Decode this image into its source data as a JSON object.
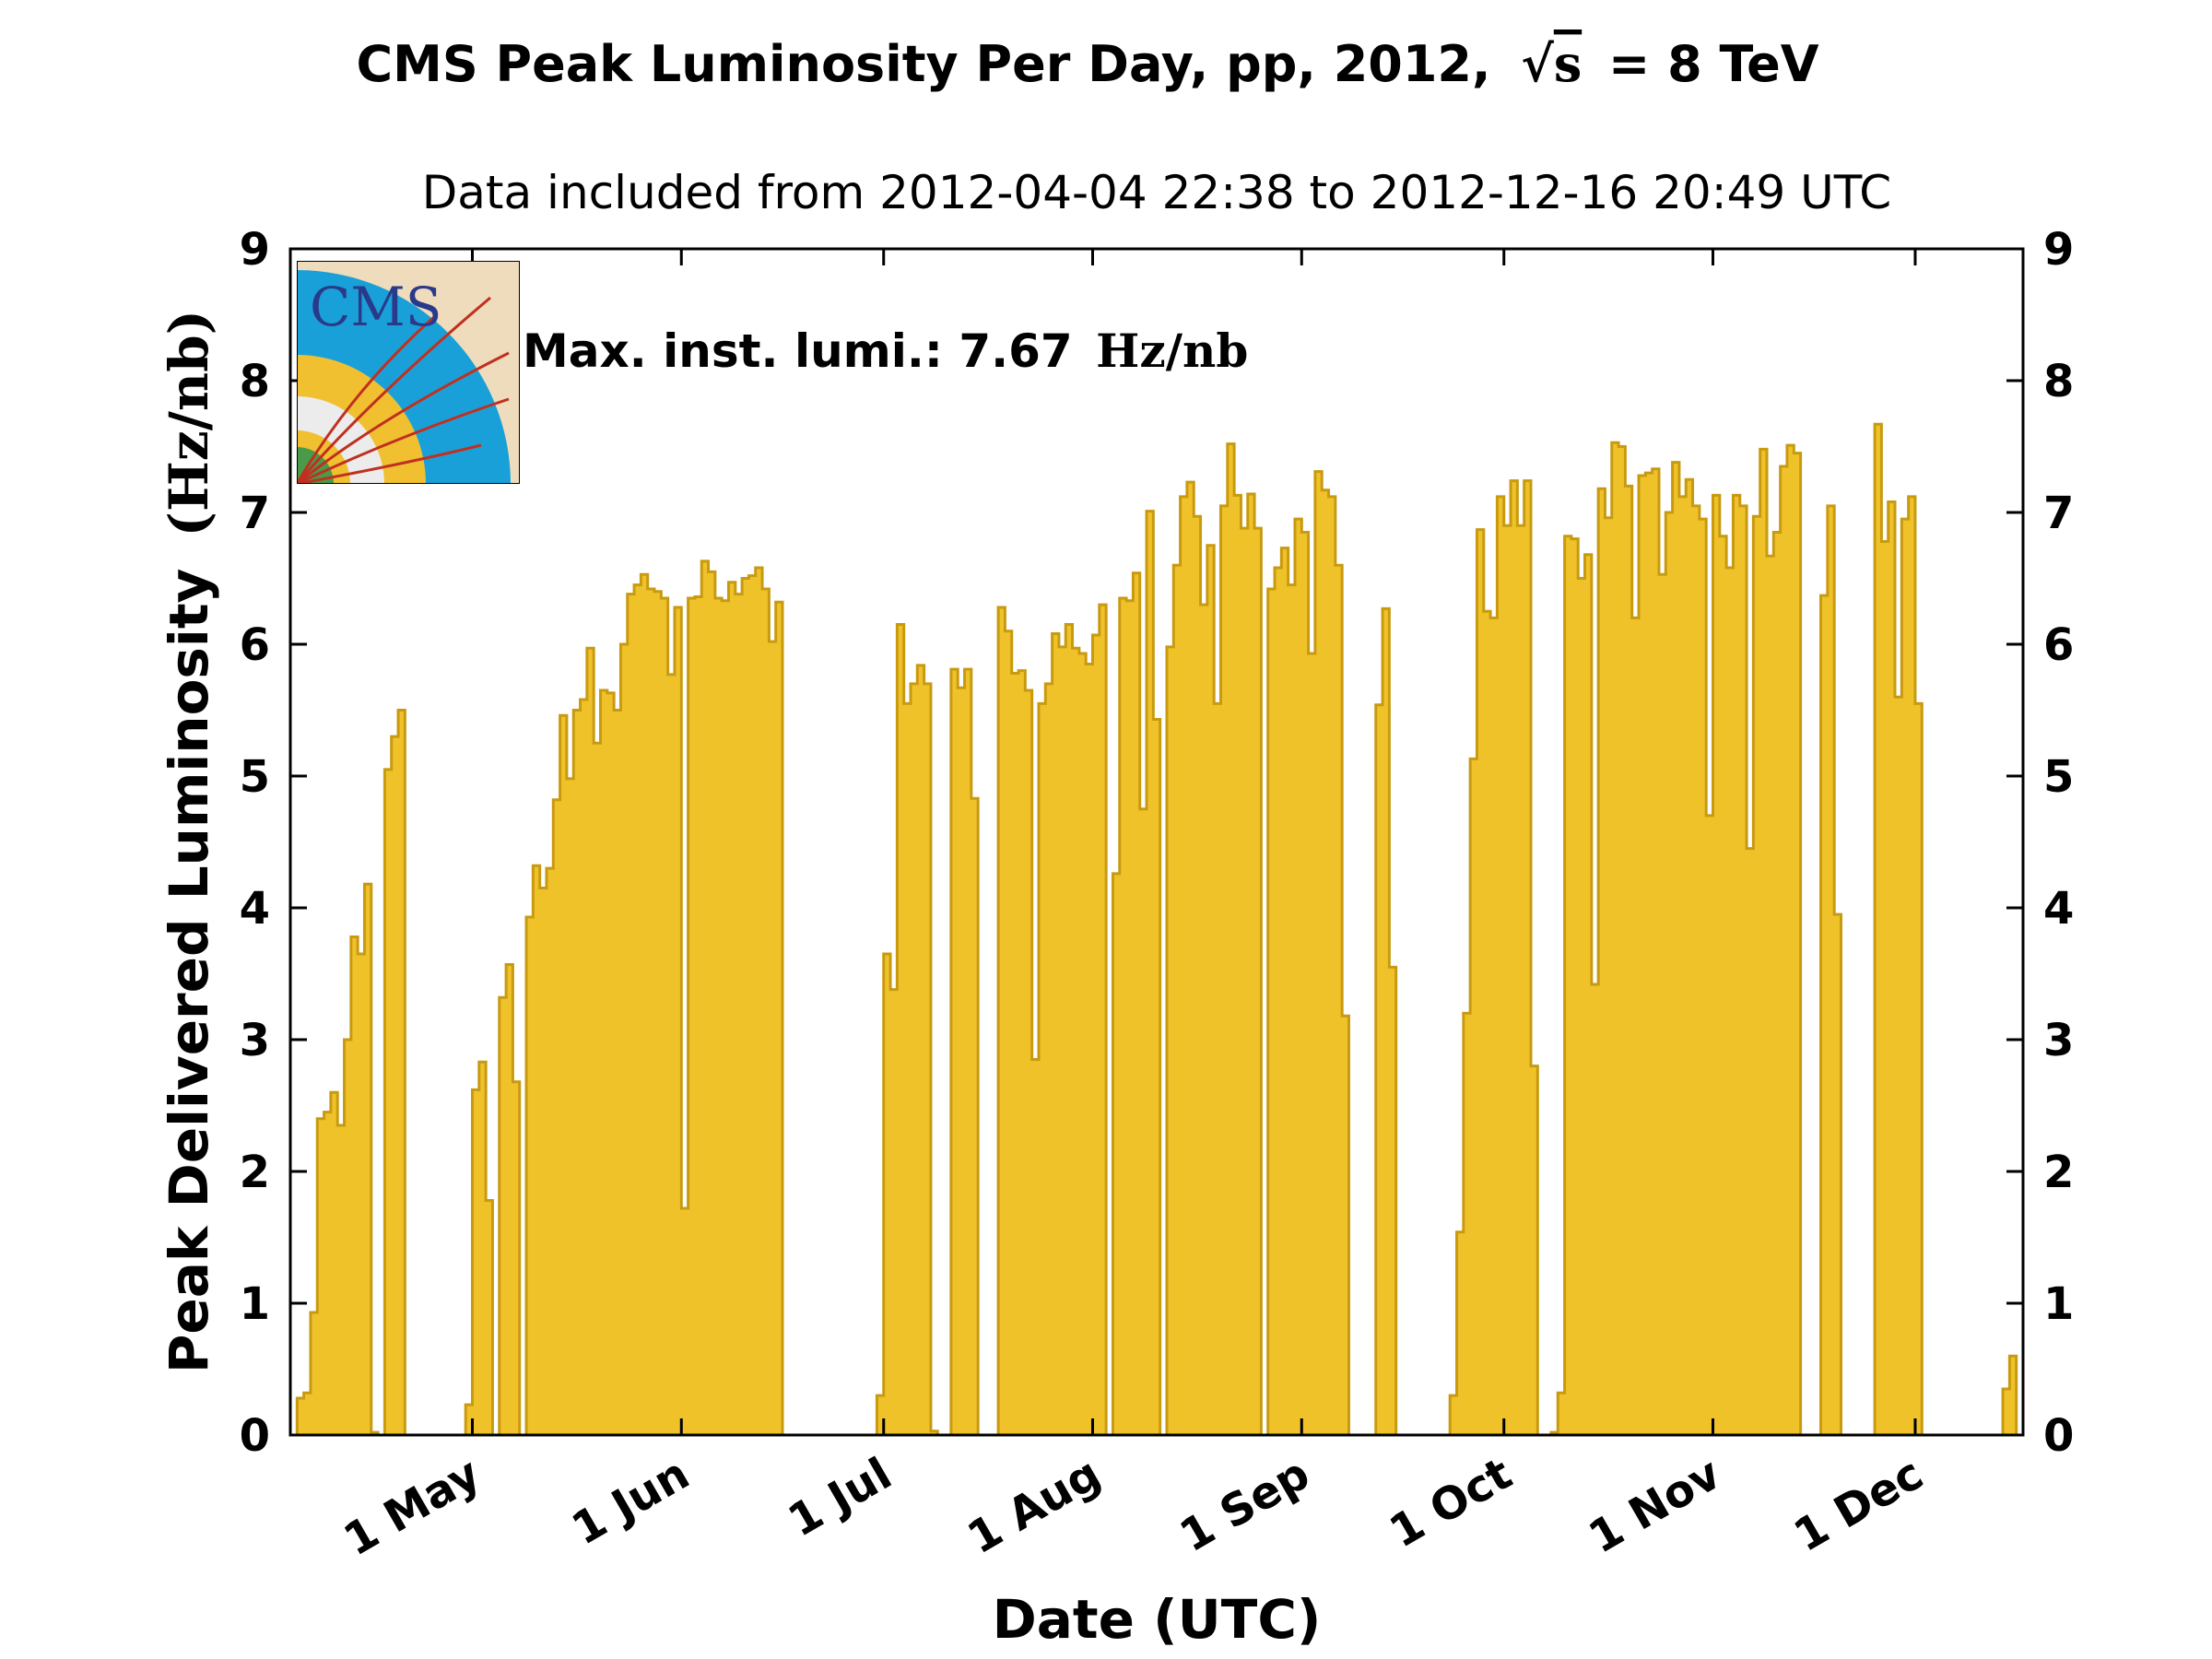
{
  "title": {
    "text": "CMS Peak Luminosity Per Day, pp, 2012,",
    "sqrt_sym": "√",
    "sqrt_arg": "s",
    "energy": "= 8 TeV"
  },
  "subtitle": "Data included from 2012-04-04 22:38 to 2012-12-16 20:49 UTC",
  "annotation": {
    "label": "Max. inst. lumi.: 7.67",
    "unit": "Hz/nb"
  },
  "logo_text": "CMS",
  "colors": {
    "fill": "#f0c22a",
    "stroke": "#c89a10",
    "axis": "#000000"
  },
  "chart_data": {
    "type": "bar",
    "series_style": "step-filled histogram",
    "xlabel": "Date (UTC)",
    "ylabel": "Peak Delivered Luminosity",
    "ylabel_unit": "(Hz/nb)",
    "ylim": [
      0,
      9
    ],
    "xlim": [
      "2012-04-04",
      "2012-12-16"
    ],
    "yticks": [
      0,
      1,
      2,
      3,
      4,
      5,
      6,
      7,
      8,
      9
    ],
    "xticks": [
      {
        "date": "2012-05-01",
        "label": "1 May"
      },
      {
        "date": "2012-06-01",
        "label": "1 Jun"
      },
      {
        "date": "2012-07-01",
        "label": "1 Jul"
      },
      {
        "date": "2012-08-01",
        "label": "1 Aug"
      },
      {
        "date": "2012-09-01",
        "label": "1 Sep"
      },
      {
        "date": "2012-10-01",
        "label": "1 Oct"
      },
      {
        "date": "2012-11-01",
        "label": "1 Nov"
      },
      {
        "date": "2012-12-01",
        "label": "1 Dec"
      }
    ],
    "max_value": 7.67,
    "points": [
      [
        "2012-04-05",
        0.28
      ],
      [
        "2012-04-06",
        0.32
      ],
      [
        "2012-04-07",
        0.93
      ],
      [
        "2012-04-08",
        2.4
      ],
      [
        "2012-04-09",
        2.45
      ],
      [
        "2012-04-10",
        2.6
      ],
      [
        "2012-04-11",
        2.35
      ],
      [
        "2012-04-12",
        3.0
      ],
      [
        "2012-04-13",
        3.78
      ],
      [
        "2012-04-14",
        3.65
      ],
      [
        "2012-04-15",
        4.18
      ],
      [
        "2012-04-16",
        0.02
      ],
      [
        "2012-04-17",
        0.0
      ],
      [
        "2012-04-18",
        5.05
      ],
      [
        "2012-04-19",
        5.3
      ],
      [
        "2012-04-20",
        5.5
      ],
      [
        "2012-04-30",
        0.23
      ],
      [
        "2012-05-01",
        2.62
      ],
      [
        "2012-05-02",
        2.83
      ],
      [
        "2012-05-03",
        1.78
      ],
      [
        "2012-05-05",
        3.32
      ],
      [
        "2012-05-06",
        3.57
      ],
      [
        "2012-05-07",
        2.68
      ],
      [
        "2012-05-09",
        3.93
      ],
      [
        "2012-05-10",
        4.32
      ],
      [
        "2012-05-11",
        4.15
      ],
      [
        "2012-05-12",
        4.3
      ],
      [
        "2012-05-13",
        4.82
      ],
      [
        "2012-05-14",
        5.46
      ],
      [
        "2012-05-15",
        4.98
      ],
      [
        "2012-05-16",
        5.5
      ],
      [
        "2012-05-17",
        5.58
      ],
      [
        "2012-05-18",
        5.97
      ],
      [
        "2012-05-19",
        5.25
      ],
      [
        "2012-05-20",
        5.65
      ],
      [
        "2012-05-21",
        5.63
      ],
      [
        "2012-05-22",
        5.5
      ],
      [
        "2012-05-23",
        6.0
      ],
      [
        "2012-05-24",
        6.38
      ],
      [
        "2012-05-25",
        6.45
      ],
      [
        "2012-05-26",
        6.53
      ],
      [
        "2012-05-27",
        6.42
      ],
      [
        "2012-05-28",
        6.4
      ],
      [
        "2012-05-29",
        6.35
      ],
      [
        "2012-05-30",
        5.77
      ],
      [
        "2012-05-31",
        6.28
      ],
      [
        "2012-06-01",
        1.72
      ],
      [
        "2012-06-02",
        6.35
      ],
      [
        "2012-06-03",
        6.36
      ],
      [
        "2012-06-04",
        6.63
      ],
      [
        "2012-06-05",
        6.55
      ],
      [
        "2012-06-06",
        6.35
      ],
      [
        "2012-06-07",
        6.33
      ],
      [
        "2012-06-08",
        6.47
      ],
      [
        "2012-06-09",
        6.38
      ],
      [
        "2012-06-10",
        6.5
      ],
      [
        "2012-06-11",
        6.52
      ],
      [
        "2012-06-12",
        6.58
      ],
      [
        "2012-06-13",
        6.42
      ],
      [
        "2012-06-14",
        6.02
      ],
      [
        "2012-06-15",
        6.32
      ],
      [
        "2012-06-30",
        0.3
      ],
      [
        "2012-07-01",
        3.65
      ],
      [
        "2012-07-02",
        3.38
      ],
      [
        "2012-07-03",
        6.15
      ],
      [
        "2012-07-04",
        5.55
      ],
      [
        "2012-07-05",
        5.7
      ],
      [
        "2012-07-06",
        5.84
      ],
      [
        "2012-07-07",
        5.7
      ],
      [
        "2012-07-08",
        0.03
      ],
      [
        "2012-07-11",
        5.81
      ],
      [
        "2012-07-12",
        5.67
      ],
      [
        "2012-07-13",
        5.81
      ],
      [
        "2012-07-14",
        4.83
      ],
      [
        "2012-07-18",
        6.28
      ],
      [
        "2012-07-19",
        6.1
      ],
      [
        "2012-07-20",
        5.78
      ],
      [
        "2012-07-21",
        5.8
      ],
      [
        "2012-07-22",
        5.65
      ],
      [
        "2012-07-23",
        2.85
      ],
      [
        "2012-07-24",
        5.55
      ],
      [
        "2012-07-25",
        5.7
      ],
      [
        "2012-07-26",
        6.08
      ],
      [
        "2012-07-27",
        5.98
      ],
      [
        "2012-07-28",
        6.15
      ],
      [
        "2012-07-29",
        5.97
      ],
      [
        "2012-07-30",
        5.93
      ],
      [
        "2012-07-31",
        5.85
      ],
      [
        "2012-08-01",
        6.07
      ],
      [
        "2012-08-02",
        6.3
      ],
      [
        "2012-08-04",
        4.26
      ],
      [
        "2012-08-05",
        6.35
      ],
      [
        "2012-08-06",
        6.33
      ],
      [
        "2012-08-07",
        6.54
      ],
      [
        "2012-08-08",
        4.75
      ],
      [
        "2012-08-09",
        7.01
      ],
      [
        "2012-08-10",
        5.43
      ],
      [
        "2012-08-12",
        5.98
      ],
      [
        "2012-08-13",
        6.6
      ],
      [
        "2012-08-14",
        7.12
      ],
      [
        "2012-08-15",
        7.23
      ],
      [
        "2012-08-16",
        6.97
      ],
      [
        "2012-08-17",
        6.3
      ],
      [
        "2012-08-18",
        6.75
      ],
      [
        "2012-08-19",
        5.55
      ],
      [
        "2012-08-20",
        7.05
      ],
      [
        "2012-08-21",
        7.52
      ],
      [
        "2012-08-22",
        7.13
      ],
      [
        "2012-08-23",
        6.88
      ],
      [
        "2012-08-24",
        7.14
      ],
      [
        "2012-08-25",
        6.88
      ],
      [
        "2012-08-27",
        6.42
      ],
      [
        "2012-08-28",
        6.58
      ],
      [
        "2012-08-29",
        6.73
      ],
      [
        "2012-08-30",
        6.45
      ],
      [
        "2012-08-31",
        6.95
      ],
      [
        "2012-09-01",
        6.85
      ],
      [
        "2012-09-02",
        5.93
      ],
      [
        "2012-09-03",
        7.31
      ],
      [
        "2012-09-04",
        7.17
      ],
      [
        "2012-09-05",
        7.12
      ],
      [
        "2012-09-06",
        6.6
      ],
      [
        "2012-09-07",
        3.18
      ],
      [
        "2012-09-12",
        5.54
      ],
      [
        "2012-09-13",
        6.27
      ],
      [
        "2012-09-14",
        3.55
      ],
      [
        "2012-09-23",
        0.3
      ],
      [
        "2012-09-24",
        1.54
      ],
      [
        "2012-09-25",
        3.2
      ],
      [
        "2012-09-26",
        5.13
      ],
      [
        "2012-09-27",
        6.87
      ],
      [
        "2012-09-28",
        6.25
      ],
      [
        "2012-09-29",
        6.2
      ],
      [
        "2012-09-30",
        7.12
      ],
      [
        "2012-10-01",
        6.9
      ],
      [
        "2012-10-02",
        7.24
      ],
      [
        "2012-10-03",
        6.9
      ],
      [
        "2012-10-04",
        7.24
      ],
      [
        "2012-10-05",
        2.8
      ],
      [
        "2012-10-08",
        0.02
      ],
      [
        "2012-10-09",
        0.32
      ],
      [
        "2012-10-10",
        6.82
      ],
      [
        "2012-10-11",
        6.8
      ],
      [
        "2012-10-12",
        6.5
      ],
      [
        "2012-10-13",
        6.68
      ],
      [
        "2012-10-14",
        3.42
      ],
      [
        "2012-10-15",
        7.18
      ],
      [
        "2012-10-16",
        6.96
      ],
      [
        "2012-10-17",
        7.53
      ],
      [
        "2012-10-18",
        7.5
      ],
      [
        "2012-10-19",
        7.2
      ],
      [
        "2012-10-20",
        6.2
      ],
      [
        "2012-10-21",
        7.28
      ],
      [
        "2012-10-22",
        7.3
      ],
      [
        "2012-10-23",
        7.33
      ],
      [
        "2012-10-24",
        6.53
      ],
      [
        "2012-10-25",
        7.0
      ],
      [
        "2012-10-26",
        7.38
      ],
      [
        "2012-10-27",
        7.12
      ],
      [
        "2012-10-28",
        7.25
      ],
      [
        "2012-10-29",
        7.05
      ],
      [
        "2012-10-30",
        6.95
      ],
      [
        "2012-10-31",
        4.7
      ],
      [
        "2012-11-01",
        7.13
      ],
      [
        "2012-11-02",
        6.82
      ],
      [
        "2012-11-03",
        6.58
      ],
      [
        "2012-11-04",
        7.13
      ],
      [
        "2012-11-05",
        7.05
      ],
      [
        "2012-11-06",
        4.45
      ],
      [
        "2012-11-07",
        6.97
      ],
      [
        "2012-11-08",
        7.48
      ],
      [
        "2012-11-09",
        6.67
      ],
      [
        "2012-11-10",
        6.85
      ],
      [
        "2012-11-11",
        7.35
      ],
      [
        "2012-11-12",
        7.51
      ],
      [
        "2012-11-13",
        7.45
      ],
      [
        "2012-11-17",
        6.37
      ],
      [
        "2012-11-18",
        7.05
      ],
      [
        "2012-11-19",
        3.95
      ],
      [
        "2012-11-25",
        7.67
      ],
      [
        "2012-11-26",
        6.78
      ],
      [
        "2012-11-27",
        7.08
      ],
      [
        "2012-11-28",
        5.6
      ],
      [
        "2012-11-29",
        6.95
      ],
      [
        "2012-11-30",
        7.12
      ],
      [
        "2012-12-01",
        5.55
      ],
      [
        "2012-12-14",
        0.35
      ],
      [
        "2012-12-15",
        0.6
      ]
    ]
  }
}
